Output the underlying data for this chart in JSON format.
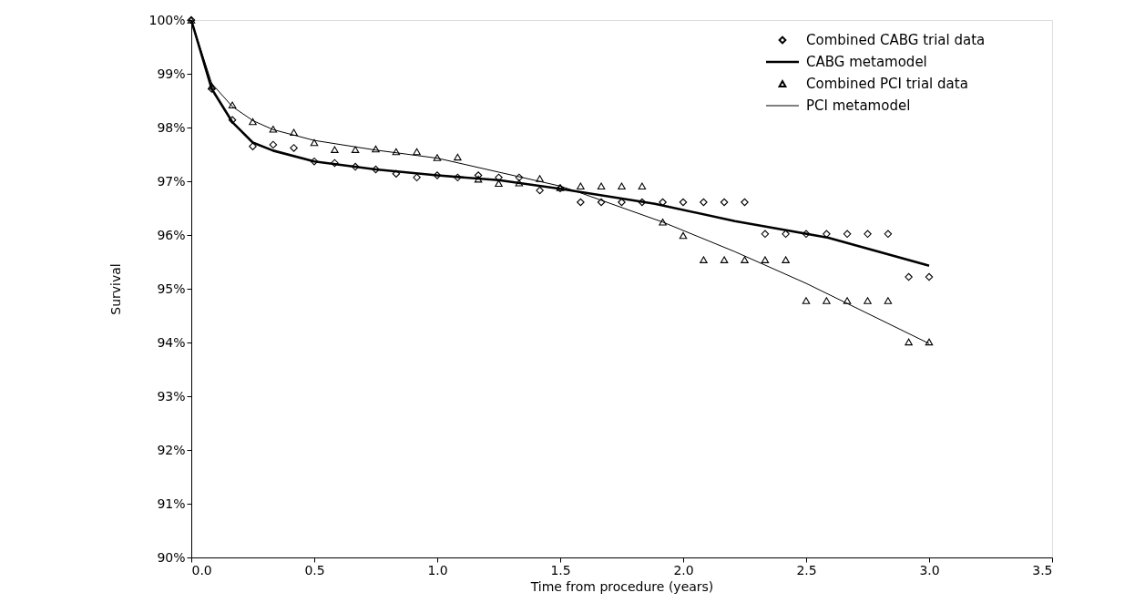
{
  "chart_data": {
    "type": "scatter",
    "xlabel": "Time from procedure (years)",
    "ylabel": "Survival",
    "xlim": [
      0,
      3.5
    ],
    "ylim": [
      90,
      100
    ],
    "xticks": [
      {
        "value": 0,
        "label": "0.0"
      },
      0.5,
      {
        "value": 1,
        "label": "1.0"
      },
      1.5,
      {
        "value": 2,
        "label": "2.0"
      },
      2.5,
      {
        "value": 3,
        "label": "3.0"
      },
      3.5
    ],
    "yticks": [
      {
        "value": 90,
        "label": "90%"
      },
      {
        "value": 91,
        "label": "91%"
      },
      {
        "value": 92,
        "label": "92%"
      },
      {
        "value": 93,
        "label": "93%"
      },
      {
        "value": 94,
        "label": "94%"
      },
      {
        "value": 95,
        "label": "95%"
      },
      {
        "value": 96,
        "label": "96%"
      },
      {
        "value": 97,
        "label": "97%"
      },
      {
        "value": 98,
        "label": "98%"
      },
      {
        "value": 99,
        "label": "99%"
      },
      {
        "value": 100,
        "label": "100%"
      }
    ],
    "grid": false,
    "legend": "top right",
    "series": [
      {
        "name": "Combined CABG trial data",
        "marker": "diamond",
        "color": "#000000",
        "x": [
          0,
          0.083,
          0.167,
          0.25,
          0.333,
          0.417,
          0.5,
          0.583,
          0.667,
          0.75,
          0.833,
          0.917,
          1.0,
          1.083,
          1.167,
          1.25,
          1.333,
          1.417,
          1.5,
          1.583,
          1.667,
          1.75,
          1.833,
          1.917,
          2.0,
          2.083,
          2.167,
          2.25,
          2.333,
          2.417,
          2.5,
          2.583,
          2.667,
          2.75,
          2.833,
          2.917,
          3.0
        ],
        "values": [
          100,
          98.72,
          98.14,
          97.65,
          97.68,
          97.62,
          97.37,
          97.34,
          97.27,
          97.22,
          97.14,
          97.07,
          97.11,
          97.07,
          97.11,
          97.07,
          97.07,
          96.83,
          96.87,
          96.61,
          96.61,
          96.61,
          96.61,
          96.61,
          96.61,
          96.61,
          96.61,
          96.61,
          96.02,
          96.02,
          96.02,
          96.02,
          96.02,
          96.02,
          96.02,
          95.22,
          95.22
        ]
      },
      {
        "name": "CABG metamodel",
        "type": "line",
        "marker": "none",
        "line_style": "solid",
        "color": "#000000",
        "x": [
          0,
          0.083,
          0.167,
          0.25,
          0.333,
          0.5,
          0.75,
          1.0,
          1.25,
          1.5,
          1.885,
          2.21,
          2.59,
          3.0
        ],
        "values": [
          100,
          98.72,
          98.1,
          97.72,
          97.57,
          97.37,
          97.22,
          97.11,
          97.02,
          96.86,
          96.58,
          96.26,
          95.95,
          95.43
        ]
      },
      {
        "name": "Combined PCI trial data",
        "marker": "triangle",
        "color": "#000000",
        "x": [
          0,
          0.083,
          0.167,
          0.25,
          0.333,
          0.417,
          0.5,
          0.583,
          0.667,
          0.75,
          0.833,
          0.917,
          1.0,
          1.083,
          1.167,
          1.25,
          1.333,
          1.417,
          1.5,
          1.583,
          1.667,
          1.75,
          1.833,
          1.917,
          2.0,
          2.083,
          2.167,
          2.25,
          2.333,
          2.417,
          2.5,
          2.583,
          2.667,
          2.75,
          2.833,
          2.917,
          3.0
        ],
        "values": [
          100,
          98.77,
          98.42,
          98.11,
          97.97,
          97.91,
          97.72,
          97.59,
          97.59,
          97.6,
          97.55,
          97.55,
          97.44,
          97.45,
          97.04,
          96.96,
          96.97,
          97.05,
          96.88,
          96.91,
          96.91,
          96.91,
          96.91,
          96.24,
          95.99,
          95.54,
          95.54,
          95.54,
          95.54,
          95.54,
          94.78,
          94.78,
          94.78,
          94.78,
          94.78,
          94.01,
          94.01
        ]
      },
      {
        "name": "PCI metamodel",
        "type": "line",
        "marker": "none",
        "line_style": "solid",
        "color": "#000000",
        "x": [
          0,
          0.083,
          0.167,
          0.25,
          0.333,
          0.5,
          0.75,
          1.0,
          1.25,
          1.5,
          1.585,
          1.917,
          2.21,
          2.5,
          3.0
        ],
        "values": [
          100,
          98.82,
          98.39,
          98.13,
          97.96,
          97.76,
          97.58,
          97.43,
          97.17,
          96.91,
          96.78,
          96.24,
          95.69,
          95.1,
          93.98
        ]
      }
    ]
  }
}
